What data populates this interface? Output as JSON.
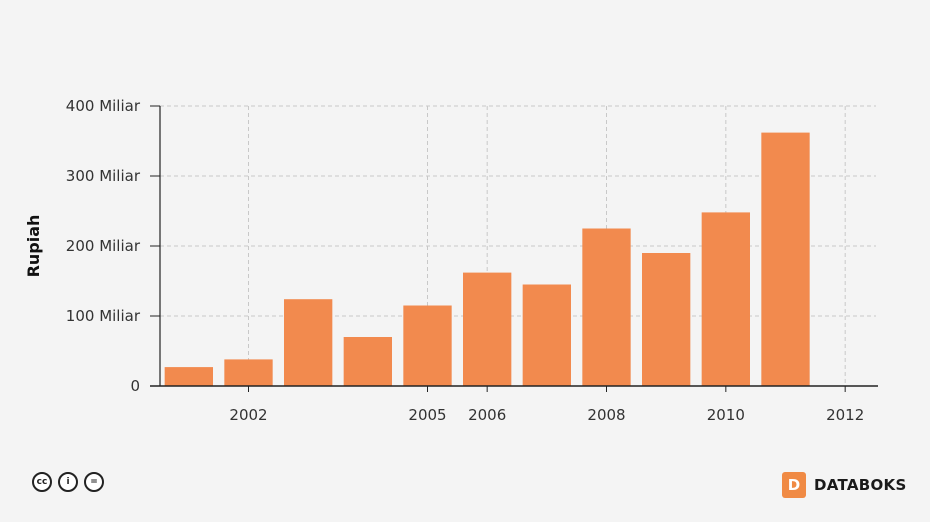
{
  "chart_data": {
    "type": "bar",
    "categories": [
      "2001",
      "2002",
      "2003",
      "2004",
      "2005",
      "2006",
      "2007",
      "2008",
      "2009",
      "2010",
      "2011",
      "2012"
    ],
    "values": [
      27,
      38,
      124,
      70,
      115,
      162,
      145,
      225,
      190,
      248,
      362,
      0
    ],
    "x_tick_labels": [
      "2002",
      "2005",
      "2006",
      "2008",
      "2010",
      "2012"
    ],
    "y_ticks": [
      {
        "value": 0,
        "label": "0"
      },
      {
        "value": 100,
        "label": "100 Miliar"
      },
      {
        "value": 200,
        "label": "200 Miliar"
      },
      {
        "value": 300,
        "label": "300 Miliar"
      },
      {
        "value": 400,
        "label": "400 Miliar"
      }
    ],
    "ylabel": "Rupiah",
    "xlabel": "",
    "ylim": [
      0,
      400
    ],
    "grid": true,
    "bar_color": "#f28a4e"
  },
  "footer": {
    "license_icons": [
      "cc-icon",
      "by-icon",
      "nd-icon"
    ],
    "license_glyphs": [
      "cc",
      "i",
      "="
    ],
    "brand_mark": "D",
    "brand_name": "DATABOKS"
  }
}
